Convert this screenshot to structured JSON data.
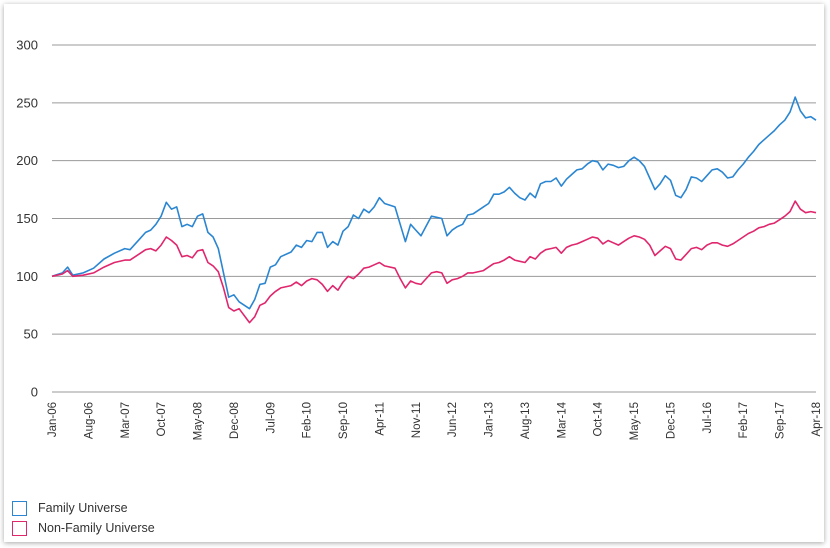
{
  "chart_data": {
    "type": "line",
    "title": "",
    "xlabel": "",
    "ylabel": "",
    "ylim": [
      0,
      300
    ],
    "yticks": [
      "0",
      "50",
      "100",
      "150",
      "200",
      "250",
      "300"
    ],
    "grid": true,
    "legend_placement": "bottom-left",
    "x_tick_labels": [
      "Jan-06",
      "Aug-06",
      "Mar-07",
      "Oct-07",
      "May-08",
      "Dec-08",
      "Jul-09",
      "Feb-10",
      "Sep-10",
      "Apr-11",
      "Nov-11",
      "Jun-12",
      "Jan-13",
      "Aug-13",
      "Mar-14",
      "Oct-14",
      "May-15",
      "Dec-15",
      "Jul-16",
      "Feb-17",
      "Sep-17",
      "Apr-18"
    ],
    "series": [
      {
        "name": "Family Universe",
        "color": "#2b86d1",
        "points": [
          [
            "Jan-06",
            100
          ],
          [
            "Mar-06",
            103
          ],
          [
            "Apr-06",
            108
          ],
          [
            "May-06",
            101
          ],
          [
            "Jul-06",
            103
          ],
          [
            "Sep-06",
            107
          ],
          [
            "Nov-06",
            115
          ],
          [
            "Jan-07",
            120
          ],
          [
            "Mar-07",
            124
          ],
          [
            "Apr-07",
            123
          ],
          [
            "Jun-07",
            133
          ],
          [
            "Jul-07",
            138
          ],
          [
            "Aug-07",
            140
          ],
          [
            "Sep-07",
            145
          ],
          [
            "Oct-07",
            152
          ],
          [
            "Nov-07",
            164
          ],
          [
            "Dec-07",
            158
          ],
          [
            "Jan-08",
            160
          ],
          [
            "Feb-08",
            143
          ],
          [
            "Mar-08",
            145
          ],
          [
            "Apr-08",
            143
          ],
          [
            "May-08",
            152
          ],
          [
            "Jun-08",
            154
          ],
          [
            "Jul-08",
            138
          ],
          [
            "Aug-08",
            134
          ],
          [
            "Sep-08",
            124
          ],
          [
            "Oct-08",
            103
          ],
          [
            "Nov-08",
            82
          ],
          [
            "Dec-08",
            84
          ],
          [
            "Jan-09",
            78
          ],
          [
            "Mar-09",
            72
          ],
          [
            "Apr-09",
            80
          ],
          [
            "May-09",
            93
          ],
          [
            "Jun-09",
            94
          ],
          [
            "Jul-09",
            108
          ],
          [
            "Aug-09",
            110
          ],
          [
            "Sep-09",
            117
          ],
          [
            "Nov-09",
            121
          ],
          [
            "Dec-09",
            127
          ],
          [
            "Jan-10",
            125
          ],
          [
            "Feb-10",
            131
          ],
          [
            "Mar-10",
            130
          ],
          [
            "Apr-10",
            138
          ],
          [
            "May-10",
            138
          ],
          [
            "Jun-10",
            125
          ],
          [
            "Jul-10",
            130
          ],
          [
            "Aug-10",
            127
          ],
          [
            "Sep-10",
            139
          ],
          [
            "Oct-10",
            143
          ],
          [
            "Nov-10",
            153
          ],
          [
            "Dec-10",
            150
          ],
          [
            "Jan-11",
            158
          ],
          [
            "Feb-11",
            155
          ],
          [
            "Mar-11",
            160
          ],
          [
            "Apr-11",
            168
          ],
          [
            "May-11",
            163
          ],
          [
            "Jul-11",
            160
          ],
          [
            "Aug-11",
            145
          ],
          [
            "Sep-11",
            130
          ],
          [
            "Oct-11",
            145
          ],
          [
            "Nov-11",
            140
          ],
          [
            "Dec-11",
            135
          ],
          [
            "Feb-12",
            152
          ],
          [
            "Mar-12",
            151
          ],
          [
            "Apr-12",
            150
          ],
          [
            "May-12",
            135
          ],
          [
            "Jun-12",
            140
          ],
          [
            "Jul-12",
            143
          ],
          [
            "Aug-12",
            145
          ],
          [
            "Sep-12",
            153
          ],
          [
            "Oct-12",
            154
          ],
          [
            "Dec-12",
            160
          ],
          [
            "Jan-13",
            163
          ],
          [
            "Feb-13",
            171
          ],
          [
            "Mar-13",
            171
          ],
          [
            "Apr-13",
            173
          ],
          [
            "May-13",
            177
          ],
          [
            "Jun-13",
            172
          ],
          [
            "Jul-13",
            168
          ],
          [
            "Aug-13",
            166
          ],
          [
            "Sep-13",
            172
          ],
          [
            "Oct-13",
            168
          ],
          [
            "Nov-13",
            180
          ],
          [
            "Dec-13",
            182
          ],
          [
            "Jan-14",
            182
          ],
          [
            "Feb-14",
            185
          ],
          [
            "Mar-14",
            178
          ],
          [
            "Apr-14",
            184
          ],
          [
            "May-14",
            188
          ],
          [
            "Jun-14",
            192
          ],
          [
            "Jul-14",
            193
          ],
          [
            "Aug-14",
            197
          ],
          [
            "Sep-14",
            200
          ],
          [
            "Oct-14",
            199
          ],
          [
            "Nov-14",
            192
          ],
          [
            "Dec-14",
            197
          ],
          [
            "Jan-15",
            196
          ],
          [
            "Feb-15",
            194
          ],
          [
            "Mar-15",
            195
          ],
          [
            "Apr-15",
            200
          ],
          [
            "May-15",
            203
          ],
          [
            "Jun-15",
            200
          ],
          [
            "Jul-15",
            195
          ],
          [
            "Aug-15",
            185
          ],
          [
            "Sep-15",
            175
          ],
          [
            "Oct-15",
            180
          ],
          [
            "Nov-15",
            187
          ],
          [
            "Dec-15",
            183
          ],
          [
            "Jan-16",
            170
          ],
          [
            "Feb-16",
            168
          ],
          [
            "Mar-16",
            175
          ],
          [
            "Apr-16",
            186
          ],
          [
            "May-16",
            185
          ],
          [
            "Jun-16",
            182
          ],
          [
            "Jul-16",
            187
          ],
          [
            "Aug-16",
            192
          ],
          [
            "Sep-16",
            193
          ],
          [
            "Oct-16",
            190
          ],
          [
            "Nov-16",
            185
          ],
          [
            "Dec-16",
            186
          ],
          [
            "Jan-17",
            192
          ],
          [
            "Feb-17",
            197
          ],
          [
            "Mar-17",
            203
          ],
          [
            "Apr-17",
            208
          ],
          [
            "May-17",
            214
          ],
          [
            "Jun-17",
            218
          ],
          [
            "Jul-17",
            222
          ],
          [
            "Aug-17",
            226
          ],
          [
            "Sep-17",
            231
          ],
          [
            "Oct-17",
            235
          ],
          [
            "Nov-17",
            242
          ],
          [
            "Dec-17",
            255
          ],
          [
            "Jan-18",
            243
          ],
          [
            "Feb-18",
            237
          ],
          [
            "Mar-18",
            238
          ],
          [
            "Apr-18",
            235
          ]
        ]
      },
      {
        "name": "Non-Family Universe",
        "color": "#e0266d",
        "points": [
          [
            "Jan-06",
            100
          ],
          [
            "Mar-06",
            102
          ],
          [
            "Apr-06",
            105
          ],
          [
            "May-06",
            100
          ],
          [
            "Jul-06",
            101
          ],
          [
            "Sep-06",
            103
          ],
          [
            "Nov-06",
            108
          ],
          [
            "Jan-07",
            112
          ],
          [
            "Mar-07",
            114
          ],
          [
            "Apr-07",
            114
          ],
          [
            "Jun-07",
            120
          ],
          [
            "Jul-07",
            123
          ],
          [
            "Aug-07",
            124
          ],
          [
            "Sep-07",
            122
          ],
          [
            "Oct-07",
            127
          ],
          [
            "Nov-07",
            134
          ],
          [
            "Dec-07",
            131
          ],
          [
            "Jan-08",
            127
          ],
          [
            "Feb-08",
            117
          ],
          [
            "Mar-08",
            118
          ],
          [
            "Apr-08",
            116
          ],
          [
            "May-08",
            122
          ],
          [
            "Jun-08",
            123
          ],
          [
            "Jul-08",
            112
          ],
          [
            "Aug-08",
            109
          ],
          [
            "Sep-08",
            104
          ],
          [
            "Oct-08",
            90
          ],
          [
            "Nov-08",
            73
          ],
          [
            "Dec-08",
            70
          ],
          [
            "Jan-09",
            72
          ],
          [
            "Mar-09",
            60
          ],
          [
            "Apr-09",
            65
          ],
          [
            "May-09",
            75
          ],
          [
            "Jun-09",
            77
          ],
          [
            "Jul-09",
            83
          ],
          [
            "Aug-09",
            87
          ],
          [
            "Sep-09",
            90
          ],
          [
            "Nov-09",
            92
          ],
          [
            "Dec-09",
            95
          ],
          [
            "Jan-10",
            92
          ],
          [
            "Feb-10",
            96
          ],
          [
            "Mar-10",
            98
          ],
          [
            "Apr-10",
            97
          ],
          [
            "May-10",
            93
          ],
          [
            "Jun-10",
            87
          ],
          [
            "Jul-10",
            92
          ],
          [
            "Aug-10",
            88
          ],
          [
            "Sep-10",
            95
          ],
          [
            "Oct-10",
            100
          ],
          [
            "Nov-10",
            98
          ],
          [
            "Dec-10",
            102
          ],
          [
            "Jan-11",
            107
          ],
          [
            "Feb-11",
            108
          ],
          [
            "Mar-11",
            110
          ],
          [
            "Apr-11",
            112
          ],
          [
            "May-11",
            109
          ],
          [
            "Jul-11",
            107
          ],
          [
            "Aug-11",
            98
          ],
          [
            "Sep-11",
            90
          ],
          [
            "Oct-11",
            96
          ],
          [
            "Nov-11",
            94
          ],
          [
            "Dec-11",
            93
          ],
          [
            "Feb-12",
            103
          ],
          [
            "Mar-12",
            104
          ],
          [
            "Apr-12",
            103
          ],
          [
            "May-12",
            94
          ],
          [
            "Jun-12",
            97
          ],
          [
            "Jul-12",
            98
          ],
          [
            "Aug-12",
            100
          ],
          [
            "Sep-12",
            103
          ],
          [
            "Oct-12",
            103
          ],
          [
            "Dec-12",
            105
          ],
          [
            "Jan-13",
            108
          ],
          [
            "Feb-13",
            111
          ],
          [
            "Mar-13",
            112
          ],
          [
            "Apr-13",
            114
          ],
          [
            "May-13",
            117
          ],
          [
            "Jun-13",
            114
          ],
          [
            "Jul-13",
            113
          ],
          [
            "Aug-13",
            112
          ],
          [
            "Sep-13",
            117
          ],
          [
            "Oct-13",
            115
          ],
          [
            "Nov-13",
            120
          ],
          [
            "Dec-13",
            123
          ],
          [
            "Jan-14",
            124
          ],
          [
            "Feb-14",
            125
          ],
          [
            "Mar-14",
            120
          ],
          [
            "Apr-14",
            125
          ],
          [
            "May-14",
            127
          ],
          [
            "Jun-14",
            128
          ],
          [
            "Jul-14",
            130
          ],
          [
            "Aug-14",
            132
          ],
          [
            "Sep-14",
            134
          ],
          [
            "Oct-14",
            133
          ],
          [
            "Nov-14",
            128
          ],
          [
            "Dec-14",
            131
          ],
          [
            "Jan-15",
            129
          ],
          [
            "Feb-15",
            127
          ],
          [
            "Mar-15",
            130
          ],
          [
            "Apr-15",
            133
          ],
          [
            "May-15",
            135
          ],
          [
            "Jun-15",
            134
          ],
          [
            "Jul-15",
            132
          ],
          [
            "Aug-15",
            127
          ],
          [
            "Sep-15",
            118
          ],
          [
            "Oct-15",
            122
          ],
          [
            "Nov-15",
            126
          ],
          [
            "Dec-15",
            124
          ],
          [
            "Jan-16",
            115
          ],
          [
            "Feb-16",
            114
          ],
          [
            "Mar-16",
            119
          ],
          [
            "Apr-16",
            124
          ],
          [
            "May-16",
            125
          ],
          [
            "Jun-16",
            123
          ],
          [
            "Jul-16",
            127
          ],
          [
            "Aug-16",
            129
          ],
          [
            "Sep-16",
            129
          ],
          [
            "Oct-16",
            127
          ],
          [
            "Nov-16",
            126
          ],
          [
            "Dec-16",
            128
          ],
          [
            "Jan-17",
            131
          ],
          [
            "Feb-17",
            134
          ],
          [
            "Mar-17",
            137
          ],
          [
            "Apr-17",
            139
          ],
          [
            "May-17",
            142
          ],
          [
            "Jun-17",
            143
          ],
          [
            "Jul-17",
            145
          ],
          [
            "Aug-17",
            146
          ],
          [
            "Sep-17",
            149
          ],
          [
            "Oct-17",
            152
          ],
          [
            "Nov-17",
            156
          ],
          [
            "Dec-17",
            165
          ],
          [
            "Jan-18",
            158
          ],
          [
            "Feb-18",
            155
          ],
          [
            "Mar-18",
            156
          ],
          [
            "Apr-18",
            155
          ]
        ]
      }
    ]
  }
}
